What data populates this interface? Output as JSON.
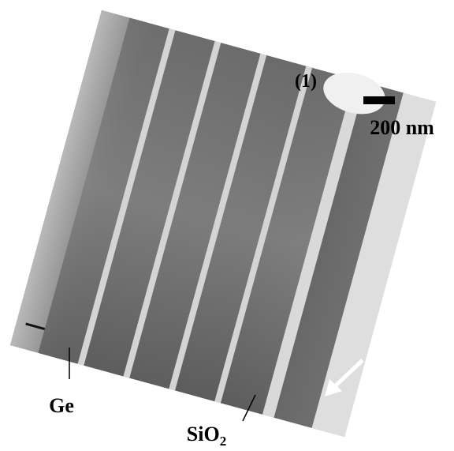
{
  "labels": {
    "marker": "(1)",
    "scale_bar": "200 nm",
    "ge": "Ge",
    "sio2": {
      "main": "SiO",
      "subscript": "2"
    }
  }
}
